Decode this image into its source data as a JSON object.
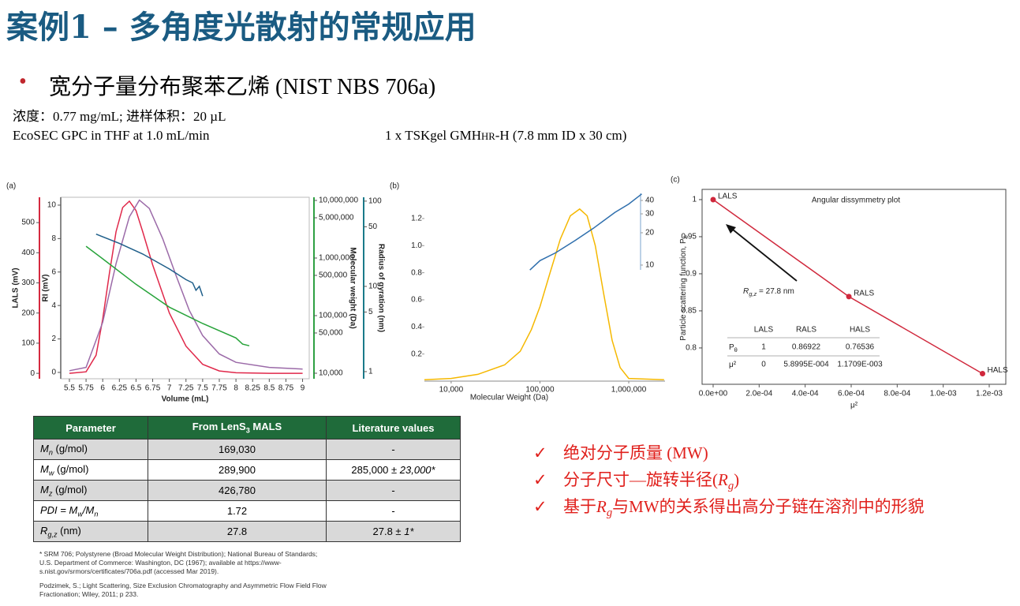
{
  "title": "案例1 – 多角度光散射的常规应用",
  "bullet": "宽分子量分布聚苯乙烯 (NIST NBS 706a)",
  "conditions": {
    "concentration": "浓度：0.77 mg/mL; 进样体积：20 µL",
    "method": "EcoSEC GPC in THF at 1.0 mL/min",
    "column": [
      {
        "text": "1 x TSKgel GMH"
      },
      {
        "text": "HR",
        "style": "smallcaps"
      },
      {
        "text": "-H (7.8 mm ID x 30 cm)"
      }
    ]
  },
  "chart_data": [
    {
      "type": "multiaxis-line",
      "panel": "(a)",
      "x_label": "Volume (mL)",
      "xlim": [
        5.37,
        9.1
      ],
      "xticks": [
        5.5,
        5.75,
        6,
        6.25,
        6.5,
        6.75,
        7,
        7.25,
        7.5,
        7.75,
        8,
        8.25,
        8.5,
        8.75,
        9
      ],
      "axes": [
        {
          "label": "LALS (mV)",
          "lim": [
            -18,
            584
          ],
          "ticks": [
            0,
            100,
            200,
            300,
            400,
            500
          ],
          "color": "#d5293f"
        },
        {
          "label": "RI (mV)",
          "lim": [
            -0.38,
            10.47
          ],
          "ticks": [
            0,
            2,
            4,
            6,
            8,
            10
          ],
          "color": "#888888"
        },
        {
          "label": "Molecular weight (Da)",
          "log": true,
          "lim": [
            8020,
            11350000
          ],
          "ticks": [
            {
              "value": 10000,
              "label": "10,000"
            },
            {
              "value": 50000,
              "label": "50,000"
            },
            {
              "value": 100000,
              "label": "100,000"
            },
            {
              "value": 500000,
              "label": "500,000"
            },
            {
              "value": 1000000,
              "label": "1,000,000"
            },
            {
              "value": 5000000,
              "label": "5,000,000"
            },
            {
              "value": 10000000,
              "label": "10,000,000"
            }
          ],
          "color": "#2ea043"
        },
        {
          "label": "Radius of gyration (nm)",
          "log": true,
          "lim": [
            0.825,
            111
          ],
          "ticks": [
            1,
            5,
            10,
            50,
            100
          ],
          "color": "#1a7a8a"
        }
      ],
      "series": [
        {
          "axis": 0,
          "color": "#e0284a",
          "x": [
            5.5,
            5.75,
            5.9,
            6.0,
            6.1,
            6.2,
            6.3,
            6.4,
            6.5,
            6.6,
            6.75,
            7.0,
            7.25,
            7.5,
            7.75,
            8,
            8.5,
            9
          ],
          "values": [
            0,
            5,
            60,
            180,
            330,
            470,
            550,
            571,
            540,
            470,
            360,
            200,
            90,
            30,
            8,
            2,
            0,
            0
          ]
        },
        {
          "axis": 1,
          "color": "#9b6aa8",
          "x": [
            5.5,
            5.75,
            6.0,
            6.2,
            6.4,
            6.55,
            6.7,
            6.9,
            7.1,
            7.3,
            7.5,
            7.75,
            8,
            8.5,
            9
          ],
          "values": [
            0.1,
            0.3,
            3,
            6.5,
            9.3,
            10.3,
            9.8,
            8,
            5.8,
            3.7,
            2.2,
            1.1,
            0.6,
            0.3,
            0.2
          ]
        },
        {
          "axis": 3,
          "color": "#1f5f8a",
          "x": [
            5.9,
            6.25,
            6.6,
            7.0,
            7.25,
            7.35,
            7.4,
            7.45,
            7.5
          ],
          "values": [
            41,
            32,
            24,
            16,
            12,
            11,
            9,
            10,
            7.7
          ]
        },
        {
          "axis": 2,
          "color": "#27a33a",
          "x": [
            5.75,
            6.0,
            6.5,
            7.0,
            7.5,
            8.0,
            8.1,
            8.2
          ],
          "values": [
            1600000,
            970000,
            350000,
            140000,
            73000,
            41000,
            32000,
            30000
          ]
        }
      ]
    },
    {
      "type": "line",
      "panel": "(b)",
      "x_label": "Molecular Weight (Da)",
      "xlog": true,
      "xlim": [
        5000,
        2560000
      ],
      "xticks": [
        {
          "value": 10000,
          "label": "10,000"
        },
        {
          "value": 100000,
          "label": "100,000"
        },
        {
          "value": 1000000,
          "label": "1,000,000"
        }
      ],
      "axes": [
        {
          "lim": [
            0,
            1.386
          ],
          "ticks": [
            0.2,
            0.4,
            0.6,
            0.8,
            {
              "value": 1,
              "label": "1.0"
            },
            1.2
          ]
        },
        {
          "log": true,
          "lim": [
            0.83,
            46.6
          ],
          "ticks": [
            10,
            20,
            30,
            40
          ],
          "color": "#2a6fb0"
        }
      ],
      "series": [
        {
          "axis": 0,
          "color": "#f5b800",
          "x": [
            5000,
            10000,
            20000,
            40000,
            60000,
            80000,
            100000,
            130000,
            170000,
            220000,
            280000,
            340000,
            420000,
            520000,
            650000,
            800000,
            1000000,
            2500000
          ],
          "values": [
            0.01,
            0.02,
            0.05,
            0.12,
            0.22,
            0.38,
            0.55,
            0.8,
            1.05,
            1.22,
            1.27,
            1.22,
            1.0,
            0.65,
            0.3,
            0.1,
            0.02,
            0.01
          ]
        },
        {
          "axis": 1,
          "color": "#2f6fad",
          "x": [
            77000,
            100000,
            150000,
            250000,
            400000,
            700000,
            1000000,
            1400000
          ],
          "values": [
            9,
            11,
            13,
            17,
            22,
            31,
            37,
            46
          ]
        }
      ]
    },
    {
      "type": "scatter",
      "panel": "(c)",
      "title": "Angular dissymmetry plot",
      "x_label": "μ²",
      "y_label": [
        {
          "text": "Particle scattering function, P"
        },
        {
          "text": "θ",
          "style": "sub"
        }
      ],
      "xlim": [
        -4.8e-05,
        0.001272
      ],
      "xticks": [
        {
          "value": 0,
          "label": "0.0e+00"
        },
        {
          "value": 0.0002,
          "label": "2.0e-04"
        },
        {
          "value": 0.0004,
          "label": "4.0e-04"
        },
        {
          "value": 0.0006,
          "label": "6.0e-04"
        },
        {
          "value": 0.0008,
          "label": "8.0e-04"
        },
        {
          "value": 0.001,
          "label": "1.0e-03"
        },
        {
          "value": 0.0012,
          "label": "1.2e-03"
        }
      ],
      "ylim": [
        0.751,
        1.0138
      ],
      "yticks": [
        1,
        0.95,
        0.9,
        0.85,
        0.8
      ],
      "series": [
        {
          "color": "#d0283c",
          "x": [
            0,
            0.00058995,
            0.0011709
          ],
          "values": [
            1,
            0.86922,
            0.76536
          ],
          "point_labels": [
            "LALS",
            "RALS",
            "HALS"
          ]
        }
      ],
      "annotation": [
        {
          "text": "R",
          "style": "italic"
        },
        {
          "text": "g,z",
          "style": "italic-sub"
        },
        {
          "text": " = 27.8 nm"
        }
      ],
      "inset_table": {
        "header": [
          "LALS",
          "RALS",
          "HALS"
        ],
        "rows": [
          {
            "label": [
              {
                "text": "P"
              },
              {
                "text": "θ",
                "style": "sub"
              }
            ],
            "cells": [
              "1",
              "0.86922",
              "0.76536"
            ]
          },
          {
            "label": [
              {
                "text": "μ²"
              }
            ],
            "cells": [
              "0",
              "5.8995E-004",
              "1.1709E-003"
            ]
          }
        ]
      }
    }
  ],
  "table": {
    "header": [
      [
        {
          "text": "Parameter"
        }
      ],
      [
        {
          "text": "From LenS"
        },
        {
          "text": "3",
          "style": "sub"
        },
        {
          "text": " MALS"
        }
      ],
      [
        {
          "text": "Literature values"
        }
      ]
    ],
    "rows": [
      [
        [
          {
            "text": "M",
            "style": "italic"
          },
          {
            "text": "n",
            "style": "italic-sub"
          },
          {
            "text": " (g/mol)"
          }
        ],
        [
          {
            "text": "169,030"
          }
        ],
        [
          {
            "text": "-"
          }
        ]
      ],
      [
        [
          {
            "text": "M",
            "style": "italic"
          },
          {
            "text": "w",
            "style": "italic-sub"
          },
          {
            "text": " (g/mol)"
          }
        ],
        [
          {
            "text": "289,900"
          }
        ],
        [
          {
            "text": "285,000 ± "
          },
          {
            "text": "23,000*",
            "style": "italic"
          }
        ]
      ],
      [
        [
          {
            "text": "M",
            "style": "italic"
          },
          {
            "text": "z",
            "style": "italic-sub"
          },
          {
            "text": " (g/mol)"
          }
        ],
        [
          {
            "text": "426,780"
          }
        ],
        [
          {
            "text": "-"
          }
        ]
      ],
      [
        [
          {
            "text": "PDI = M",
            "style": "italic"
          },
          {
            "text": "w",
            "style": "italic-sub"
          },
          {
            "text": "/M",
            "style": "italic"
          },
          {
            "text": "n",
            "style": "italic-sub"
          }
        ],
        [
          {
            "text": "1.72"
          }
        ],
        [
          {
            "text": "-"
          }
        ]
      ],
      [
        [
          {
            "text": "R",
            "style": "italic"
          },
          {
            "text": "g,z",
            "style": "italic-sub"
          },
          {
            "text": " (nm)"
          }
        ],
        [
          {
            "text": "27.8"
          }
        ],
        [
          {
            "text": "27.8 ± "
          },
          {
            "text": "1*",
            "style": "italic"
          }
        ]
      ]
    ]
  },
  "footnotes": [
    "* SRM 706; Polystyrene (Broad Molecular Weight Distribution); National Bureau of Standards; U.S. Department of Commerce: Washington, DC (1967); available at https://www-s.nist.gov/srmors/certificates/706a.pdf (accessed Mar 2019).",
    "Podzimek, S.; Light Scattering, Size Exclusion Chromatography and Asymmetric Flow Field Flow Fractionation; Wiley, 2011; p 233."
  ],
  "conclusions": [
    [
      {
        "text": "绝对分子质量 (MW)"
      }
    ],
    [
      {
        "text": "分子尺寸—旋转半径("
      },
      {
        "text": "R",
        "style": "italic"
      },
      {
        "text": "g",
        "style": "italic-sub"
      },
      {
        "text": ")"
      }
    ],
    [
      {
        "text": "基于"
      },
      {
        "text": "R",
        "style": "italic"
      },
      {
        "text": "g",
        "style": "italic-sub"
      },
      {
        "text": "与MW的关系得出高分子链在溶剂中的形貌"
      }
    ]
  ]
}
